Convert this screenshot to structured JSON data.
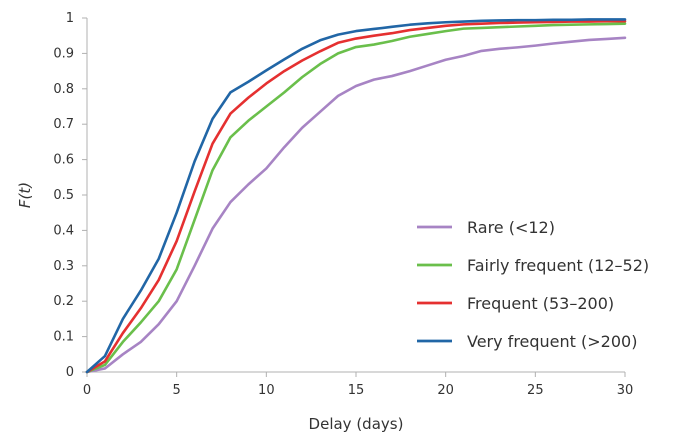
{
  "chart_data": {
    "type": "line",
    "title": "",
    "xlabel": "Delay (days)",
    "ylabel": "F(t)",
    "xlim": [
      0,
      30
    ],
    "ylim": [
      0,
      1
    ],
    "xticks": [
      0,
      5,
      10,
      15,
      20,
      25,
      30
    ],
    "yticks": [
      0,
      0.1,
      0.2,
      0.3,
      0.4,
      0.5,
      0.6,
      0.7,
      0.8,
      0.9,
      1
    ],
    "ytick_labels": [
      "0",
      "0.1",
      "0.2",
      "0.3",
      "0.4",
      "0.5",
      "0.6",
      "0.7",
      "0.8",
      "0.9",
      "1"
    ],
    "grid": false,
    "legend_position": "lower-right",
    "x": [
      0,
      1,
      2,
      3,
      4,
      5,
      6,
      7,
      8,
      9,
      10,
      11,
      12,
      13,
      14,
      15,
      16,
      17,
      18,
      19,
      20,
      21,
      22,
      23,
      24,
      25,
      26,
      27,
      28,
      29,
      30
    ],
    "series": [
      {
        "name": "Rare (<12)",
        "color": "#a784c4",
        "values": [
          0,
          0.01,
          0.05,
          0.085,
          0.135,
          0.2,
          0.3,
          0.405,
          0.48,
          0.53,
          0.575,
          0.635,
          0.69,
          0.735,
          0.78,
          0.808,
          0.826,
          0.836,
          0.85,
          0.866,
          0.882,
          0.893,
          0.907,
          0.913,
          0.917,
          0.922,
          0.928,
          0.933,
          0.938,
          0.941,
          0.944
        ]
      },
      {
        "name": "Fairly frequent (12–52)",
        "color": "#6abf4b",
        "values": [
          0,
          0.02,
          0.085,
          0.14,
          0.2,
          0.29,
          0.43,
          0.57,
          0.663,
          0.71,
          0.75,
          0.79,
          0.833,
          0.87,
          0.9,
          0.918,
          0.925,
          0.935,
          0.947,
          0.955,
          0.963,
          0.97,
          0.972,
          0.974,
          0.976,
          0.978,
          0.98,
          0.981,
          0.982,
          0.983,
          0.984
        ]
      },
      {
        "name": "Frequent (53–200)",
        "color": "#e53030",
        "values": [
          0,
          0.03,
          0.11,
          0.18,
          0.26,
          0.37,
          0.51,
          0.645,
          0.73,
          0.775,
          0.815,
          0.85,
          0.88,
          0.906,
          0.93,
          0.942,
          0.95,
          0.957,
          0.966,
          0.972,
          0.978,
          0.982,
          0.984,
          0.986,
          0.987,
          0.988,
          0.989,
          0.99,
          0.99,
          0.991,
          0.991
        ]
      },
      {
        "name": "Very frequent (>200)",
        "color": "#2166a6",
        "values": [
          0,
          0.045,
          0.15,
          0.23,
          0.32,
          0.45,
          0.595,
          0.715,
          0.79,
          0.82,
          0.852,
          0.883,
          0.913,
          0.937,
          0.953,
          0.963,
          0.969,
          0.975,
          0.981,
          0.985,
          0.988,
          0.99,
          0.992,
          0.993,
          0.994,
          0.994,
          0.995,
          0.995,
          0.996,
          0.996,
          0.996
        ]
      }
    ]
  }
}
